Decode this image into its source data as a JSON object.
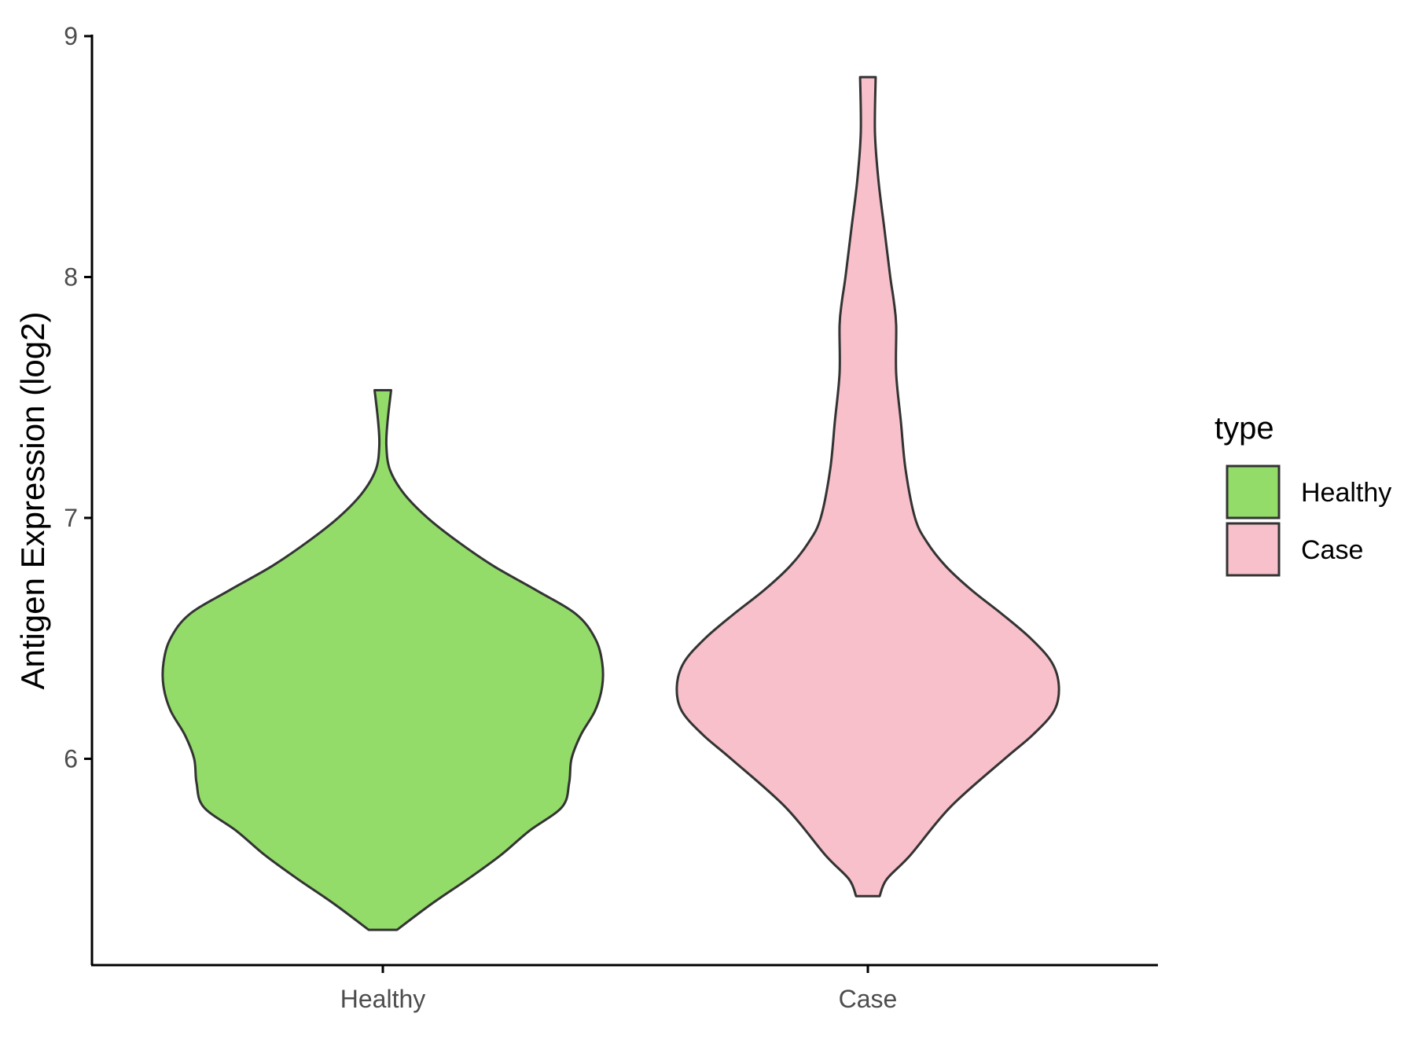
{
  "chart_data": {
    "type": "violin",
    "title": "",
    "xlabel": "",
    "ylabel": "Antigen Expression (log2)",
    "ylim": [
      5.15,
      9.0
    ],
    "yticks": [
      6,
      7,
      8,
      9
    ],
    "categories": [
      "Healthy",
      "Case"
    ],
    "grid": false,
    "legend": {
      "title": "type",
      "position": "right",
      "entries": [
        {
          "label": "Healthy",
          "color": "#93dc6a"
        },
        {
          "label": "Case",
          "color": "#f7c0cb"
        }
      ]
    },
    "series": [
      {
        "category": "Healthy",
        "color": "#93dc6a",
        "min": 5.29,
        "max": 7.53,
        "density": [
          [
            5.29,
            0.06
          ],
          [
            5.4,
            0.21
          ],
          [
            5.5,
            0.36
          ],
          [
            5.6,
            0.5
          ],
          [
            5.7,
            0.62
          ],
          [
            5.8,
            0.76
          ],
          [
            5.9,
            0.79
          ],
          [
            6.0,
            0.8
          ],
          [
            6.1,
            0.84
          ],
          [
            6.2,
            0.9
          ],
          [
            6.3,
            0.93
          ],
          [
            6.4,
            0.93
          ],
          [
            6.5,
            0.9
          ],
          [
            6.6,
            0.82
          ],
          [
            6.7,
            0.65
          ],
          [
            6.8,
            0.47
          ],
          [
            6.9,
            0.32
          ],
          [
            7.0,
            0.19
          ],
          [
            7.1,
            0.09
          ],
          [
            7.2,
            0.03
          ],
          [
            7.3,
            0.015
          ],
          [
            7.4,
            0.02
          ],
          [
            7.53,
            0.035
          ]
        ]
      },
      {
        "category": "Case",
        "color": "#f7c0cb",
        "min": 5.43,
        "max": 8.83,
        "density": [
          [
            5.43,
            0.05
          ],
          [
            5.5,
            0.08
          ],
          [
            5.6,
            0.18
          ],
          [
            5.8,
            0.35
          ],
          [
            6.0,
            0.58
          ],
          [
            6.1,
            0.7
          ],
          [
            6.2,
            0.79
          ],
          [
            6.3,
            0.81
          ],
          [
            6.4,
            0.78
          ],
          [
            6.5,
            0.69
          ],
          [
            6.6,
            0.57
          ],
          [
            6.7,
            0.44
          ],
          [
            6.8,
            0.33
          ],
          [
            6.9,
            0.25
          ],
          [
            7.0,
            0.2
          ],
          [
            7.2,
            0.16
          ],
          [
            7.4,
            0.14
          ],
          [
            7.6,
            0.12
          ],
          [
            7.8,
            0.12
          ],
          [
            7.9,
            0.11
          ],
          [
            8.0,
            0.095
          ],
          [
            8.2,
            0.07
          ],
          [
            8.4,
            0.045
          ],
          [
            8.6,
            0.03
          ],
          [
            8.83,
            0.033
          ]
        ]
      }
    ]
  }
}
